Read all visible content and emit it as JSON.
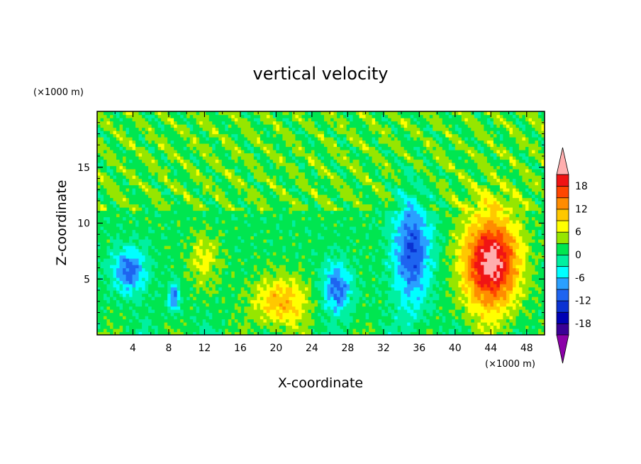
{
  "chart_data": {
    "type": "heatmap",
    "title": "vertical velocity",
    "xlabel": "X-coordinate",
    "ylabel": "Z-coordinate",
    "x_unit": "(×1000 m)",
    "y_unit": "(×1000 m)",
    "xlim": [
      0,
      50
    ],
    "ylim": [
      0,
      20
    ],
    "x_ticks": [
      4,
      8,
      12,
      16,
      20,
      24,
      28,
      32,
      36,
      40,
      44,
      48
    ],
    "y_ticks": [
      5,
      10,
      15
    ],
    "colorbar": {
      "levels": [
        -21,
        -18,
        -15,
        -12,
        -9,
        -6,
        -3,
        0,
        3,
        6,
        9,
        12,
        15,
        18,
        21
      ],
      "tick_labels": [
        "18",
        "12",
        "6",
        "0",
        "-6",
        "-12",
        "-18"
      ],
      "tick_values": [
        18,
        12,
        6,
        0,
        -6,
        -12,
        -18
      ],
      "colors": [
        "#8b00a8",
        "#3a0096",
        "#0000b4",
        "#0a32d2",
        "#1e64f0",
        "#2aa0ff",
        "#00ffff",
        "#00f0a0",
        "#00e650",
        "#96e600",
        "#ffff00",
        "#ffc800",
        "#ff8c00",
        "#ff4600",
        "#f01414",
        "#ffafaf"
      ],
      "extends": "both"
    },
    "features": [
      {
        "kind": "updraft",
        "x": 44,
        "z": 6.5,
        "peak": 22,
        "sx": 2.2,
        "sz": 3.0
      },
      {
        "kind": "updraft",
        "x": 20.5,
        "z": 3,
        "peak": 10,
        "sx": 2.2,
        "sz": 1.6
      },
      {
        "kind": "updraft",
        "x": 12,
        "z": 6.8,
        "peak": 6,
        "sx": 1.2,
        "sz": 1.7
      },
      {
        "kind": "downdraft",
        "x": 35.2,
        "z": 7.5,
        "peak": -13,
        "sx": 1.5,
        "sz": 3.5
      },
      {
        "kind": "downdraft",
        "x": 3.6,
        "z": 5.8,
        "peak": -12,
        "sx": 1.3,
        "sz": 1.4
      },
      {
        "kind": "downdraft",
        "x": 26.8,
        "z": 4.2,
        "peak": -12,
        "sx": 1.1,
        "sz": 1.6
      },
      {
        "kind": "downdraft",
        "x": 8.6,
        "z": 3.4,
        "peak": -11,
        "sx": 0.45,
        "sz": 0.9
      }
    ]
  }
}
